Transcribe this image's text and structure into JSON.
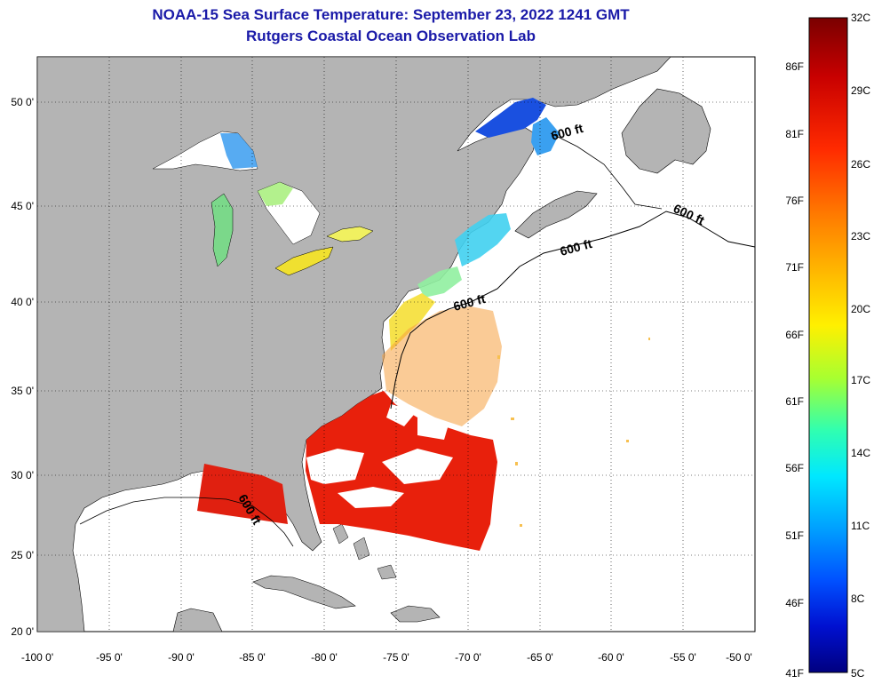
{
  "header": {
    "title": "NOAA-15 Sea Surface Temperature:  September 23, 2022 1241 GMT",
    "subtitle": "Rutgers Coastal Ocean Observation Lab"
  },
  "axes": {
    "lon_ticks": [
      "-100 0'",
      "-95 0'",
      "-90 0'",
      "-85 0'",
      "-80 0'",
      "-75 0'",
      "-70 0'",
      "-65 0'",
      "-60 0'",
      "-55 0'",
      "-50 0'"
    ],
    "lat_ticks": [
      "50 0'",
      "45 0'",
      "40 0'",
      "35 0'",
      "30 0'",
      "25 0'",
      "20 0'"
    ]
  },
  "bathymetry_labels": [
    "600 ft",
    "600 ft",
    "600 ft",
    "600 ft",
    "600 ft"
  ],
  "colorbar": {
    "celsius": [
      "32C",
      "29C",
      "26C",
      "23C",
      "20C",
      "17C",
      "14C",
      "11C",
      "8C",
      "5C"
    ],
    "fahrenheit": [
      "86F",
      "81F",
      "76F",
      "71F",
      "66F",
      "61F",
      "56F",
      "51F",
      "46F",
      "41F"
    ],
    "colors": [
      "#7a0000",
      "#c80000",
      "#ff2a00",
      "#ff7a00",
      "#ffc000",
      "#fff000",
      "#a8ff30",
      "#30ffb0",
      "#00e8ff",
      "#00a0ff",
      "#0050ff",
      "#0010d0",
      "#000080"
    ]
  },
  "colors": {
    "land": "#b4b4b4",
    "title": "#1a1aa8",
    "sst_warm": "#e8200c",
    "sst_mid": "#ffd000",
    "sst_cool": "#30c0ff"
  }
}
